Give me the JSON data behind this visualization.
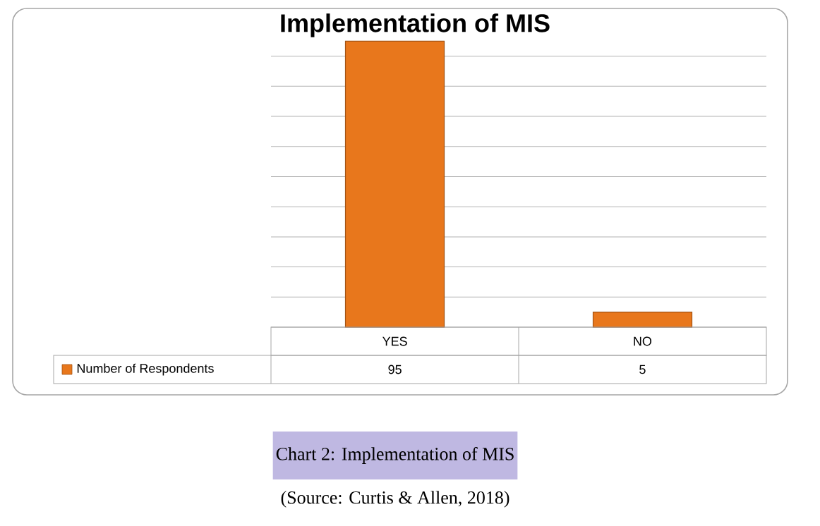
{
  "chart_data": {
    "type": "bar",
    "title": "Implementation of MIS",
    "categories": [
      "YES",
      "NO"
    ],
    "series": [
      {
        "name": "Number of Respondents",
        "color": "#e8771c",
        "values": [
          95,
          5
        ]
      }
    ],
    "grid": "y",
    "data_labels": true,
    "legend": "bottom left",
    "tick_labels": "x",
    "annotations": [
      "Chart 2: Implementation of MIS",
      "(Source: Curtis & Allen, 2018)"
    ]
  }
}
